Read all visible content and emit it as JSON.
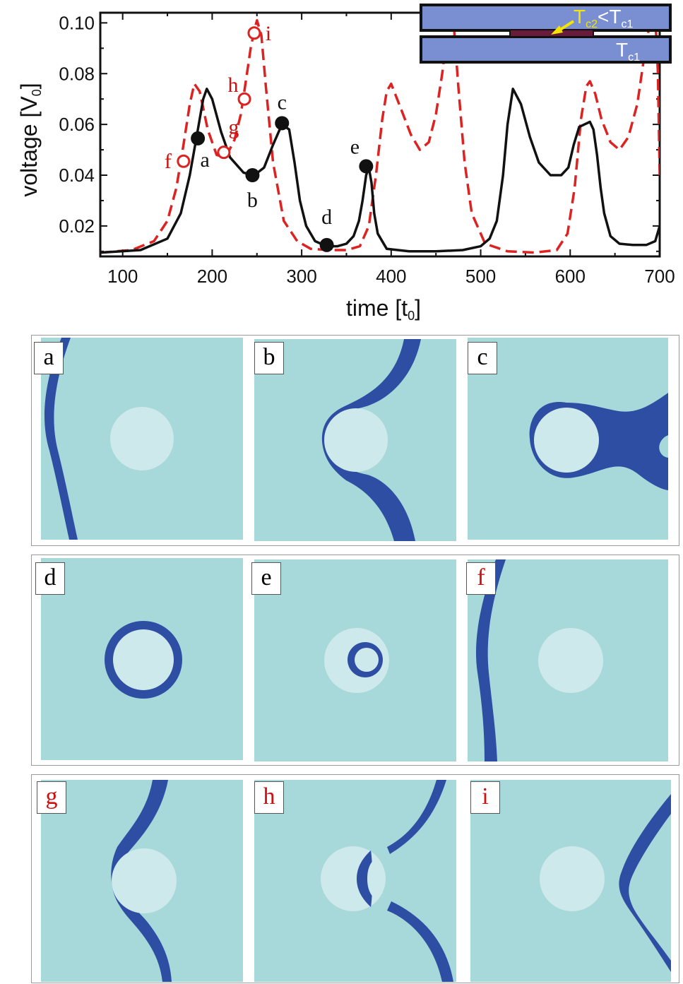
{
  "chart_data": {
    "type": "line",
    "xlabel_main": "time [t",
    "xlabel_sub": "0",
    "xlabel_close": "]",
    "ylabel_main": "voltage [V",
    "ylabel_sub": "0",
    "ylabel_close": "]",
    "xlim": [
      75,
      700
    ],
    "ylim": [
      0.008,
      0.104
    ],
    "x_ticks": [
      100,
      200,
      300,
      400,
      500,
      600,
      700
    ],
    "x_tick_labels": [
      "100",
      "200",
      "300",
      "400",
      "500",
      "600",
      "700"
    ],
    "y_ticks": [
      0.02,
      0.04,
      0.06,
      0.08,
      0.1
    ],
    "y_tick_labels": [
      "0.02",
      "0.04",
      "0.06",
      "0.08",
      "0.10"
    ],
    "series": [
      {
        "color": "#111111",
        "style": "solid",
        "x": [
          75,
          120,
          150,
          165,
          175,
          183,
          190,
          194,
          200,
          210,
          220,
          235,
          247,
          258,
          268,
          278,
          286,
          292,
          298,
          305,
          315,
          328,
          340,
          350,
          358,
          364,
          368,
          372,
          375,
          378,
          381,
          385,
          395,
          420,
          450,
          480,
          500,
          510,
          518,
          525,
          530,
          536,
          545,
          555,
          565,
          578,
          590,
          598,
          604,
          610,
          616,
          622,
          626,
          630,
          634,
          638,
          645,
          655,
          670,
          685,
          695,
          700
        ],
        "y": [
          0.0095,
          0.0105,
          0.015,
          0.025,
          0.04,
          0.056,
          0.07,
          0.074,
          0.07,
          0.057,
          0.047,
          0.041,
          0.04,
          0.043,
          0.052,
          0.06,
          0.058,
          0.045,
          0.03,
          0.02,
          0.014,
          0.012,
          0.012,
          0.013,
          0.016,
          0.022,
          0.03,
          0.04,
          0.043,
          0.037,
          0.025,
          0.017,
          0.011,
          0.01,
          0.01,
          0.0105,
          0.012,
          0.015,
          0.022,
          0.04,
          0.06,
          0.074,
          0.068,
          0.055,
          0.045,
          0.04,
          0.04,
          0.043,
          0.052,
          0.059,
          0.06,
          0.061,
          0.058,
          0.048,
          0.035,
          0.025,
          0.016,
          0.013,
          0.0125,
          0.0125,
          0.014,
          0.02
        ]
      },
      {
        "color": "#dd2222",
        "style": "dashed",
        "x": [
          75,
          110,
          135,
          150,
          160,
          168,
          175,
          180,
          186,
          195,
          205,
          215,
          225,
          232,
          238,
          243,
          247,
          250,
          255,
          260,
          268,
          280,
          295,
          310,
          330,
          350,
          365,
          375,
          383,
          390,
          395,
          400,
          410,
          422,
          432,
          442,
          450,
          457,
          462,
          466,
          468,
          470,
          475,
          482,
          490,
          505,
          530,
          560,
          585,
          597,
          605,
          612,
          618,
          622,
          628,
          635,
          645,
          655,
          665,
          675,
          682,
          688,
          692,
          695,
          698,
          700
        ],
        "y": [
          0.0095,
          0.0105,
          0.014,
          0.022,
          0.035,
          0.052,
          0.068,
          0.076,
          0.073,
          0.058,
          0.048,
          0.047,
          0.054,
          0.064,
          0.078,
          0.09,
          0.097,
          0.101,
          0.095,
          0.075,
          0.045,
          0.022,
          0.014,
          0.011,
          0.0105,
          0.0105,
          0.012,
          0.02,
          0.04,
          0.062,
          0.073,
          0.076,
          0.067,
          0.056,
          0.05,
          0.053,
          0.064,
          0.08,
          0.095,
          0.103,
          0.103,
          0.099,
          0.075,
          0.045,
          0.025,
          0.013,
          0.01,
          0.0095,
          0.0105,
          0.017,
          0.035,
          0.062,
          0.075,
          0.077,
          0.072,
          0.062,
          0.053,
          0.05,
          0.055,
          0.068,
          0.085,
          0.098,
          0.103,
          0.103,
          0.08,
          0.04
        ]
      }
    ],
    "filled_points": [
      {
        "label": "a",
        "x": 184,
        "y": 0.0545
      },
      {
        "label": "b",
        "x": 245,
        "y": 0.04
      },
      {
        "label": "c",
        "x": 278,
        "y": 0.0605
      },
      {
        "label": "d",
        "x": 328,
        "y": 0.0125
      },
      {
        "label": "e",
        "x": 372,
        "y": 0.0435
      }
    ],
    "open_points": [
      {
        "label": "f",
        "x": 168,
        "y": 0.0455
      },
      {
        "label": "g",
        "x": 213,
        "y": 0.049
      },
      {
        "label": "h",
        "x": 236,
        "y": 0.07
      },
      {
        "label": "i",
        "x": 247,
        "y": 0.096
      }
    ],
    "inset": {
      "tc2_T": "T",
      "tc2_sub": "c2",
      "lt": "<",
      "tc1_T": "T",
      "tc1_sub": "c1",
      "tc1_bottom_T": "T",
      "tc1_bottom_sub": "c1"
    }
  },
  "panels": [
    {
      "id": "a",
      "label": "a",
      "label_color": "#111111"
    },
    {
      "id": "b",
      "label": "b",
      "label_color": "#111111"
    },
    {
      "id": "c",
      "label": "c",
      "label_color": "#111111"
    },
    {
      "id": "d",
      "label": "d",
      "label_color": "#111111"
    },
    {
      "id": "e",
      "label": "e",
      "label_color": "#111111"
    },
    {
      "id": "f",
      "label": "f",
      "label_color": "#cc1111"
    },
    {
      "id": "g",
      "label": "g",
      "label_color": "#cc1111"
    },
    {
      "id": "h",
      "label": "h",
      "label_color": "#cc1111"
    },
    {
      "id": "i",
      "label": "i",
      "label_color": "#cc1111"
    }
  ],
  "colors": {
    "panel_bg": "#a7d8da",
    "disc": "#cde9ec",
    "band": "#2e4ea3",
    "inset_fill": "#7a8fd1",
    "inset_edge": "#111111",
    "inset_text_yellow": "#f4e400",
    "inset_strip": "#6a1a3a"
  }
}
